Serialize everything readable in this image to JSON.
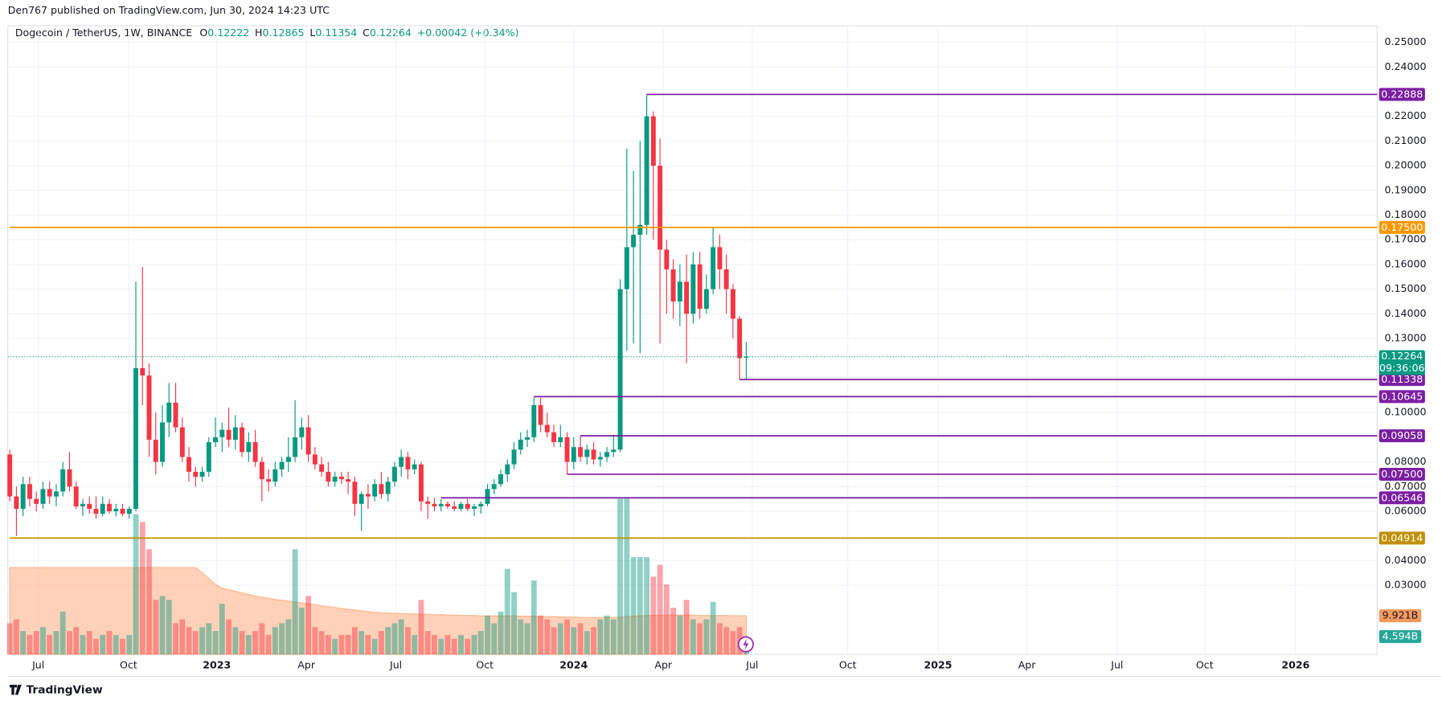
{
  "header": {
    "publisher": "Den767 published on TradingView.com, Jun 30, 2024 14:23 UTC",
    "footer": "TradingView"
  },
  "chart_data": {
    "type": "candlestick",
    "symbol": "Dogecoin / TetherUS, 1W, BINANCE",
    "legend_values": [
      {
        "label": "O",
        "value": "0.12222"
      },
      {
        "label": "H",
        "value": "0.12865"
      },
      {
        "label": "L",
        "value": "0.11354"
      },
      {
        "label": "C",
        "value": "0.12264"
      }
    ],
    "change": "+0.00042 (+0.34%)",
    "countdown": "09:36:06",
    "up_color": "#089981",
    "down_color": "#f23645",
    "open": [
      0.083,
      0.066,
      0.061,
      0.071,
      0.065,
      0.063,
      0.069,
      0.066,
      0.068,
      0.077,
      0.07,
      0.062,
      0.063,
      0.061,
      0.059,
      0.063,
      0.06,
      0.061,
      0.059,
      0.061,
      0.118,
      0.115,
      0.089,
      0.08,
      0.096,
      0.104,
      0.094,
      0.082,
      0.076,
      0.074,
      0.076,
      0.088,
      0.09,
      0.093,
      0.089,
      0.094,
      0.084,
      0.088,
      0.08,
      0.073,
      0.072,
      0.077,
      0.08,
      0.082,
      0.09,
      0.094,
      0.083,
      0.079,
      0.076,
      0.072,
      0.074,
      0.073,
      0.072,
      0.063,
      0.067,
      0.066,
      0.071,
      0.067,
      0.072,
      0.078,
      0.082,
      0.077,
      0.079,
      0.064,
      0.063,
      0.062,
      0.063,
      0.062,
      0.061,
      0.063,
      0.061,
      0.062,
      0.063,
      0.069,
      0.071,
      0.075,
      0.079,
      0.085,
      0.089,
      0.09,
      0.103,
      0.095,
      0.092,
      0.088,
      0.09,
      0.08,
      0.086,
      0.082,
      0.085,
      0.081,
      0.082,
      0.084,
      0.085,
      0.15,
      0.167,
      0.172,
      0.176,
      0.22,
      0.2,
      0.166,
      0.158,
      0.145,
      0.153,
      0.14,
      0.16,
      0.142,
      0.15,
      0.167,
      0.158,
      0.15,
      0.138,
      0.12222
    ],
    "high": [
      0.085,
      0.07,
      0.074,
      0.074,
      0.068,
      0.072,
      0.072,
      0.071,
      0.08,
      0.084,
      0.072,
      0.065,
      0.066,
      0.066,
      0.066,
      0.065,
      0.063,
      0.063,
      0.062,
      0.153,
      0.159,
      0.12,
      0.1,
      0.103,
      0.112,
      0.112,
      0.098,
      0.086,
      0.078,
      0.078,
      0.09,
      0.098,
      0.096,
      0.102,
      0.099,
      0.096,
      0.092,
      0.093,
      0.082,
      0.077,
      0.08,
      0.082,
      0.09,
      0.105,
      0.098,
      0.099,
      0.086,
      0.082,
      0.08,
      0.076,
      0.076,
      0.076,
      0.074,
      0.068,
      0.071,
      0.073,
      0.076,
      0.074,
      0.08,
      0.085,
      0.084,
      0.081,
      0.08,
      0.066,
      0.0655,
      0.065,
      0.064,
      0.064,
      0.064,
      0.065,
      0.063,
      0.064,
      0.071,
      0.073,
      0.077,
      0.081,
      0.088,
      0.092,
      0.093,
      0.1065,
      0.106,
      0.1,
      0.095,
      0.095,
      0.092,
      0.09,
      0.0906,
      0.087,
      0.088,
      0.084,
      0.086,
      0.091,
      0.154,
      0.207,
      0.198,
      0.21,
      0.2289,
      0.222,
      0.211,
      0.17,
      0.162,
      0.16,
      0.164,
      0.165,
      0.165,
      0.156,
      0.175,
      0.172,
      0.164,
      0.152,
      0.139,
      0.12865
    ],
    "low": [
      0.064,
      0.05,
      0.058,
      0.062,
      0.06,
      0.061,
      0.063,
      0.062,
      0.066,
      0.068,
      0.061,
      0.058,
      0.059,
      0.057,
      0.058,
      0.059,
      0.058,
      0.058,
      0.057,
      0.06,
      0.103,
      0.082,
      0.075,
      0.078,
      0.09,
      0.092,
      0.08,
      0.072,
      0.07,
      0.072,
      0.074,
      0.086,
      0.084,
      0.086,
      0.085,
      0.082,
      0.08,
      0.078,
      0.064,
      0.068,
      0.07,
      0.074,
      0.076,
      0.08,
      0.085,
      0.08,
      0.077,
      0.074,
      0.07,
      0.07,
      0.071,
      0.067,
      0.058,
      0.052,
      0.061,
      0.064,
      0.065,
      0.064,
      0.07,
      0.074,
      0.073,
      0.075,
      0.06,
      0.057,
      0.06,
      0.06,
      0.061,
      0.06,
      0.06,
      0.06,
      0.058,
      0.059,
      0.062,
      0.067,
      0.07,
      0.072,
      0.077,
      0.083,
      0.086,
      0.088,
      0.092,
      0.09,
      0.086,
      0.086,
      0.075,
      0.077,
      0.08,
      0.079,
      0.079,
      0.078,
      0.08,
      0.082,
      0.084,
      0.125,
      0.128,
      0.124,
      0.172,
      0.17,
      0.128,
      0.14,
      0.138,
      0.135,
      0.12,
      0.136,
      0.138,
      0.14,
      0.148,
      0.15,
      0.14,
      0.13,
      0.1134,
      0.11354
    ],
    "close": [
      0.066,
      0.061,
      0.071,
      0.065,
      0.063,
      0.069,
      0.066,
      0.068,
      0.077,
      0.07,
      0.062,
      0.063,
      0.061,
      0.059,
      0.063,
      0.06,
      0.061,
      0.059,
      0.061,
      0.118,
      0.115,
      0.089,
      0.08,
      0.096,
      0.104,
      0.094,
      0.082,
      0.076,
      0.074,
      0.076,
      0.088,
      0.09,
      0.093,
      0.089,
      0.094,
      0.084,
      0.088,
      0.08,
      0.073,
      0.072,
      0.077,
      0.08,
      0.082,
      0.09,
      0.094,
      0.083,
      0.079,
      0.076,
      0.072,
      0.074,
      0.073,
      0.072,
      0.063,
      0.067,
      0.066,
      0.071,
      0.067,
      0.072,
      0.078,
      0.082,
      0.077,
      0.079,
      0.064,
      0.063,
      0.062,
      0.063,
      0.062,
      0.061,
      0.063,
      0.061,
      0.062,
      0.063,
      0.069,
      0.071,
      0.075,
      0.079,
      0.085,
      0.089,
      0.09,
      0.103,
      0.095,
      0.092,
      0.088,
      0.09,
      0.08,
      0.086,
      0.082,
      0.085,
      0.081,
      0.082,
      0.084,
      0.085,
      0.15,
      0.167,
      0.172,
      0.176,
      0.22,
      0.2,
      0.166,
      0.158,
      0.145,
      0.153,
      0.14,
      0.16,
      0.142,
      0.15,
      0.167,
      0.158,
      0.15,
      0.138,
      0.122,
      0.12264
    ],
    "volume": [
      8,
      9,
      6,
      5,
      6,
      7,
      5,
      6,
      11,
      6,
      7,
      5,
      6,
      4,
      5,
      6,
      5,
      4,
      5,
      36,
      34,
      27,
      14,
      15,
      14,
      8,
      9,
      7,
      6,
      7,
      8,
      6,
      13,
      9,
      7,
      6,
      5,
      6,
      8,
      5,
      7,
      8,
      9,
      27,
      12,
      15,
      7,
      6,
      5,
      4,
      5,
      5,
      7,
      6,
      5,
      4,
      6,
      7,
      8,
      9,
      7,
      5,
      14,
      6,
      5,
      4,
      5,
      4,
      5,
      4,
      5,
      6,
      10,
      8,
      11,
      22,
      16,
      9,
      8,
      19,
      10,
      9,
      7,
      8,
      9,
      7,
      8,
      6,
      7,
      9,
      10,
      9,
      40,
      40,
      25,
      25,
      25,
      20,
      23,
      18,
      12,
      10,
      14,
      9,
      8,
      9,
      13.5,
      8,
      7,
      6,
      7,
      4.594
    ],
    "volume_label": "4.594B",
    "volume_ma": [
      22.3,
      22.3,
      22.3,
      22.3,
      22.3,
      22.3,
      22.3,
      22.3,
      22.3,
      22.3,
      22.3,
      22.3,
      22.3,
      22.3,
      22.3,
      22.3,
      22.3,
      22.3,
      22.3,
      22.3,
      22.3,
      22.3,
      22.3,
      22.3,
      22.3,
      22.3,
      22.3,
      22.3,
      22.3,
      21,
      19.5,
      18,
      17,
      16.6,
      16.2,
      15.8,
      15.4,
      15,
      14.7,
      14.4,
      14.1,
      13.9,
      13.7,
      13.5,
      13.2,
      13,
      12.8,
      12.5,
      12.3,
      12,
      11.8,
      11.6,
      11.4,
      11.2,
      11,
      10.8,
      10.7,
      10.6,
      10.5,
      10.5,
      10.4,
      10.4,
      10.3,
      10.3,
      10.2,
      10.2,
      10.1,
      10.1,
      10,
      10,
      10,
      9.9,
      9.9,
      9.9,
      9.9,
      9.9,
      9.9,
      9.8,
      9.8,
      9.8,
      9.7,
      9.7,
      9.7,
      9.6,
      9.6,
      9.6,
      9.5,
      9.5,
      9.5,
      9.5,
      9.5,
      9.5,
      9.6,
      9.7,
      9.8,
      9.9,
      10,
      10,
      10.1,
      10.1,
      10.1,
      10.1,
      10.1,
      10.1,
      10,
      10,
      10,
      10,
      10,
      9.95,
      9.93,
      9.921
    ],
    "volume_ma_label": "9.921B",
    "xlim": [
      -0.3,
      206.1
    ],
    "ylim": [
      0.002,
      0.2567
    ],
    "y2lim": [
      0,
      161.4
    ],
    "xticks": [
      {
        "value": 4.3,
        "label": "Jul"
      },
      {
        "value": 17.9,
        "label": "Oct"
      },
      {
        "value": 31.2,
        "label": "2023"
      },
      {
        "value": 44.7,
        "label": "Apr"
      },
      {
        "value": 58.2,
        "label": "Jul"
      },
      {
        "value": 71.6,
        "label": "Oct"
      },
      {
        "value": 85.0,
        "label": "2024"
      },
      {
        "value": 98.5,
        "label": "Apr"
      },
      {
        "value": 111.9,
        "label": "Jul"
      },
      {
        "value": 126.3,
        "label": "Oct"
      },
      {
        "value": 139.9,
        "label": "2025"
      },
      {
        "value": 153.3,
        "label": "Apr"
      },
      {
        "value": 166.9,
        "label": "Jul"
      },
      {
        "value": 180.1,
        "label": "Oct"
      },
      {
        "value": 193.8,
        "label": "2026"
      }
    ],
    "yticks": [
      {
        "value": 0.25,
        "label": "0.25000"
      },
      {
        "value": 0.24,
        "label": "0.24000"
      },
      {
        "value": 0.22,
        "label": "0.22000"
      },
      {
        "value": 0.21,
        "label": "0.21000"
      },
      {
        "value": 0.2,
        "label": "0.20000"
      },
      {
        "value": 0.19,
        "label": "0.19000"
      },
      {
        "value": 0.18,
        "label": "0.18000"
      },
      {
        "value": 0.17,
        "label": "0.17000"
      },
      {
        "value": 0.16,
        "label": "0.16000"
      },
      {
        "value": 0.15,
        "label": "0.15000"
      },
      {
        "value": 0.14,
        "label": "0.14000"
      },
      {
        "value": 0.13,
        "label": "0.13000"
      },
      {
        "value": 0.1,
        "label": "0.10000"
      },
      {
        "value": 0.08,
        "label": "0.08000"
      },
      {
        "value": 0.07,
        "label": "0.07000"
      },
      {
        "value": 0.06,
        "label": "0.06000"
      },
      {
        "value": 0.04,
        "label": "0.04000"
      },
      {
        "value": 0.03,
        "label": "0.03000"
      }
    ],
    "levels": [
      {
        "value": 0.22888,
        "start": 96,
        "color": "#7b1fa2"
      },
      {
        "value": 0.175,
        "label": "0.17500",
        "start": 0,
        "color": "#ff9800"
      },
      {
        "value": 0.11338,
        "start": 110,
        "color": "#7b1fa2"
      },
      {
        "value": 0.10645,
        "start": 79,
        "color": "#7b1fa2"
      },
      {
        "value": 0.09058,
        "start": 86,
        "color": "#7b1fa2"
      },
      {
        "value": 0.075,
        "label": "0.07500",
        "start": 84,
        "color": "#7b1fa2"
      },
      {
        "value": 0.06546,
        "start": 65,
        "color": "#7b1fa2"
      },
      {
        "value": 0.04914,
        "start": 0,
        "color": "#bf9000"
      }
    ],
    "grid": true
  }
}
